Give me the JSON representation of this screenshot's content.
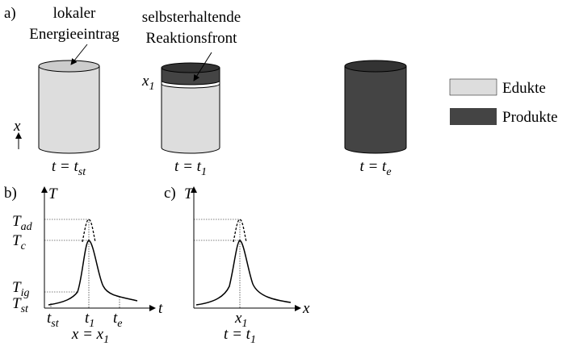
{
  "panel_a": {
    "label": "a)",
    "annotation_1": [
      "lokaler",
      "Energieeintrag"
    ],
    "annotation_2": [
      "selbsterhaltende",
      "Reaktionsfront"
    ],
    "front_position": {
      "main": "x",
      "sub": "1"
    },
    "axis": "x",
    "cylinders": [
      {
        "main": "t = t",
        "sub": "st"
      },
      {
        "main": "t = t",
        "sub": "1"
      },
      {
        "main": "t = t",
        "sub": "e"
      }
    ],
    "legend": [
      "Edukte",
      "Produkte"
    ]
  },
  "panel_b": {
    "label": "b)",
    "y_axis": "T",
    "x_axis": "t",
    "y_ticks": [
      {
        "main": "T",
        "sub": "ad"
      },
      {
        "main": "T",
        "sub": "c"
      },
      {
        "main": "T",
        "sub": "ig"
      },
      {
        "main": "T",
        "sub": "st"
      }
    ],
    "x_ticks": [
      {
        "main": "t",
        "sub": "st"
      },
      {
        "main": "t",
        "sub": "1"
      },
      {
        "main": "t",
        "sub": "e"
      }
    ],
    "caption": {
      "main": "x = x",
      "sub": "1"
    }
  },
  "panel_c": {
    "label": "c)",
    "y_axis": "T",
    "x_axis": "x",
    "x_ticks": [
      {
        "main": "x",
        "sub": "1"
      }
    ],
    "caption": {
      "main": "t = t",
      "sub": "1"
    }
  }
}
